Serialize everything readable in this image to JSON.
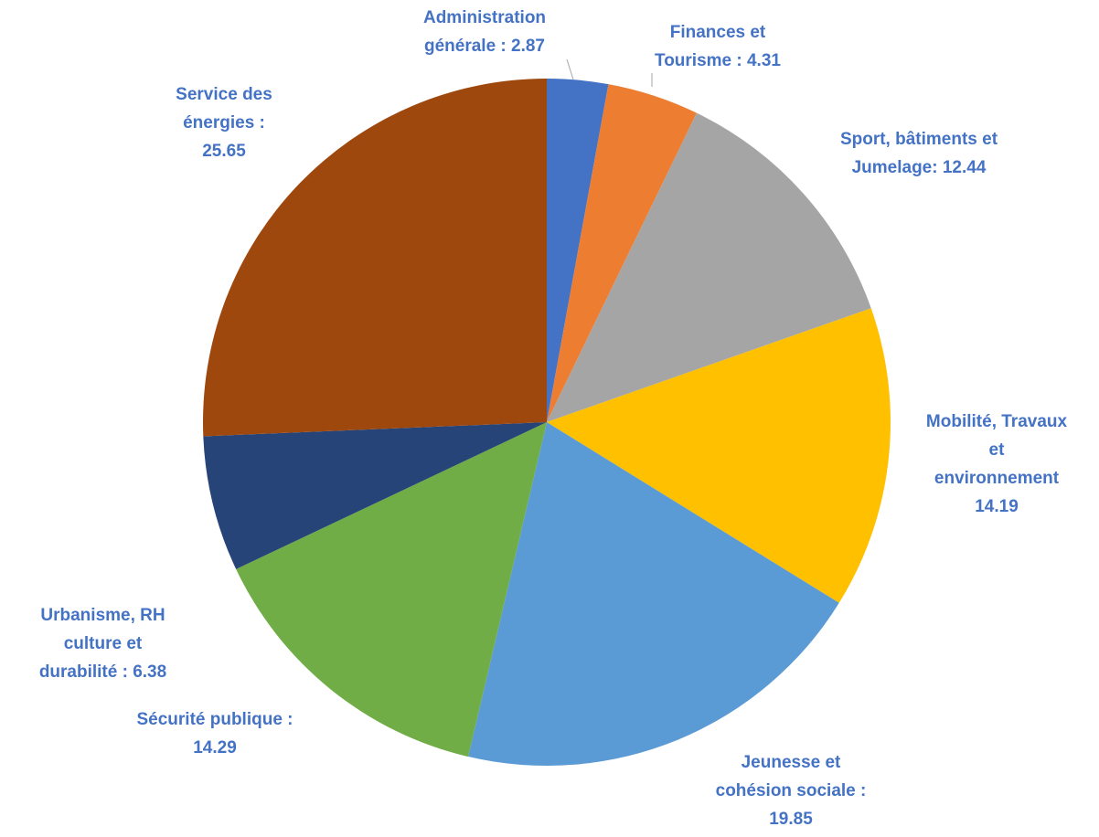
{
  "chart_data": {
    "type": "pie",
    "start_angle_deg": 0,
    "direction": "clockwise",
    "label_color": "#4472C4",
    "slices": [
      {
        "value": 2.87,
        "color": "#4472C4",
        "label_lines": [
          "Administration",
          "générale :  2.87"
        ]
      },
      {
        "value": 4.31,
        "color": "#ED7D31",
        "label_lines": [
          "Finances et",
          "Tourisme  : 4.31"
        ]
      },
      {
        "value": 12.44,
        "color": "#A5A5A5",
        "label_lines": [
          "Sport, bâtiments et",
          "Jumelage: 12.44"
        ]
      },
      {
        "value": 14.19,
        "color": "#FFC000",
        "label_lines": [
          "Mobilité, Travaux",
          "et",
          "environnement",
          "14.19"
        ]
      },
      {
        "value": 19.85,
        "color": "#5B9BD5",
        "label_lines": [
          "Jeunesse et",
          "cohésion sociale :",
          "19.85"
        ]
      },
      {
        "value": 14.29,
        "color": "#70AD47",
        "label_lines": [
          "Sécurité publique :",
          "14.29"
        ]
      },
      {
        "value": 6.38,
        "color": "#264478",
        "label_lines": [
          "Urbanisme, RH",
          "culture et",
          "durabilité :  6.38"
        ]
      },
      {
        "value": 25.65,
        "color": "#9E480E",
        "label_lines": [
          "Service des",
          "énergies :",
          "25.65"
        ]
      }
    ]
  }
}
